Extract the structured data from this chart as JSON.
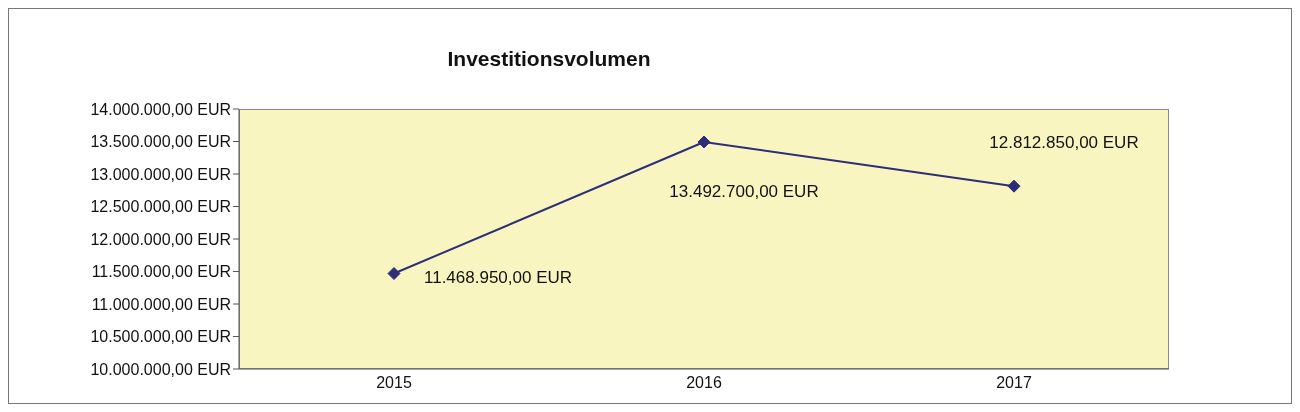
{
  "chart_data": {
    "type": "line",
    "title": "Investitionsvolumen",
    "categories": [
      "2015",
      "2016",
      "2017"
    ],
    "series": [
      {
        "color": "#2e2e78",
        "values": [
          11468950,
          13492700,
          12812850
        ],
        "value_labels": [
          "11.468.950,00 EUR",
          "13.492.700,00 EUR",
          "12.812.850,00 EUR"
        ]
      }
    ],
    "ylim": [
      10000000,
      14000000
    ],
    "yticks": [
      {
        "value": 10000000,
        "label": "10.000.000,00 EUR"
      },
      {
        "value": 10500000,
        "label": "10.500.000,00 EUR"
      },
      {
        "value": 11000000,
        "label": "11.000.000,00 EUR"
      },
      {
        "value": 11500000,
        "label": "11.500.000,00 EUR"
      },
      {
        "value": 12000000,
        "label": "12.000.000,00 EUR"
      },
      {
        "value": 12500000,
        "label": "12.500.000,00 EUR"
      },
      {
        "value": 13000000,
        "label": "13.000.000,00 EUR"
      },
      {
        "value": 13500000,
        "label": "13.500.000,00 EUR"
      },
      {
        "value": 14000000,
        "label": "14.000.000,00 EUR"
      }
    ],
    "grid": false,
    "legend": false,
    "marker": "diamond",
    "line_style": "solid"
  }
}
